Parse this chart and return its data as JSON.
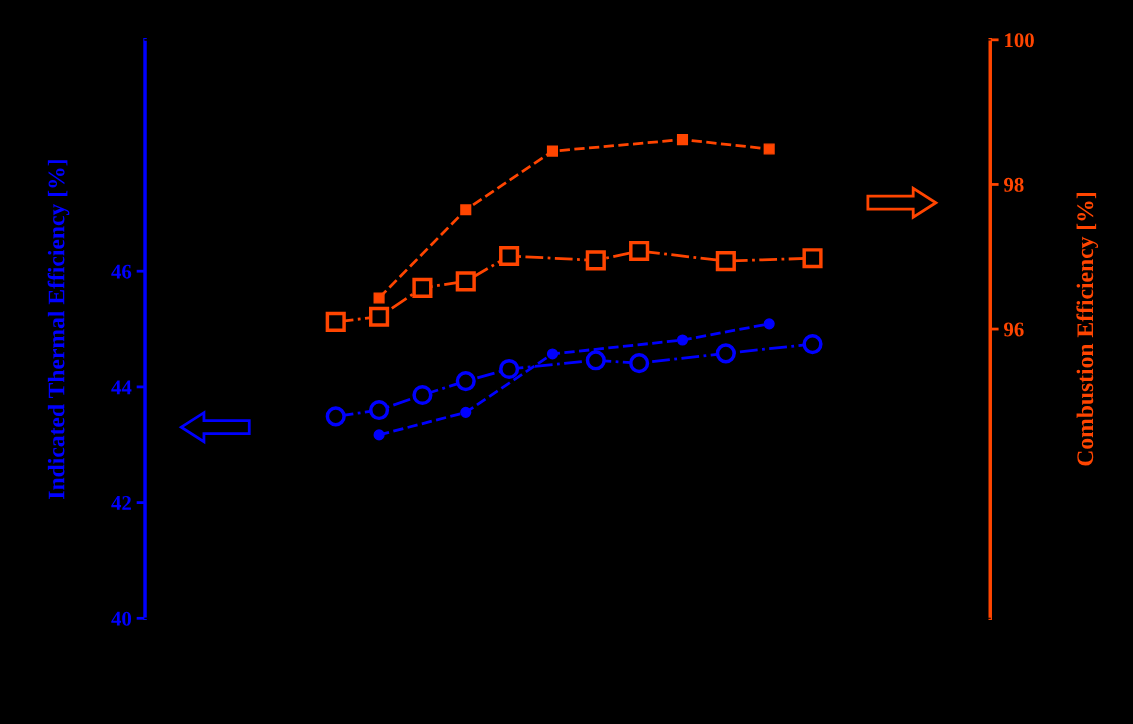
{
  "chart_data": {
    "type": "line",
    "ylabel": "Indicated Thermal Efficiency [%]",
    "y2label": "Combustion Efficiency [%]",
    "categories": [
      null,
      null,
      null,
      null,
      null,
      null,
      null,
      null,
      null,
      null,
      null,
      null
    ],
    "ylim": [
      40,
      50
    ],
    "yticks": [
      40,
      42,
      44,
      46
    ],
    "y2lim": [
      92,
      100
    ],
    "y2ticks": [
      96,
      98,
      100
    ],
    "tick_labels": "y",
    "grid": false,
    "legend": false,
    "series": [
      {
        "type": "line",
        "color": "#0000ff",
        "axis": "y",
        "marker": "circle",
        "line_style": "dashdot",
        "values": [
          43.49,
          43.6,
          43.86,
          44.1,
          44.31,
          null,
          44.46,
          44.41,
          null,
          44.58,
          null,
          44.74
        ]
      },
      {
        "type": "line",
        "color": "#0000ff",
        "axis": "y",
        "marker": "circle",
        "line_style": "dashed",
        "values": [
          null,
          43.17,
          null,
          43.56,
          null,
          44.57,
          null,
          null,
          44.81,
          null,
          45.09,
          null
        ]
      },
      {
        "type": "line",
        "color": "#ff4500",
        "axis": "y2",
        "marker": "square",
        "line_style": "dashdot",
        "values": [
          96.1,
          96.17,
          96.57,
          96.66,
          97.01,
          null,
          96.95,
          97.08,
          null,
          96.94,
          null,
          96.98
        ]
      },
      {
        "type": "line",
        "color": "#ff4500",
        "axis": "y2",
        "marker": "square",
        "line_style": "dashed",
        "values": [
          null,
          96.43,
          null,
          97.65,
          null,
          98.46,
          null,
          null,
          98.62,
          null,
          98.49,
          null
        ]
      }
    ]
  }
}
